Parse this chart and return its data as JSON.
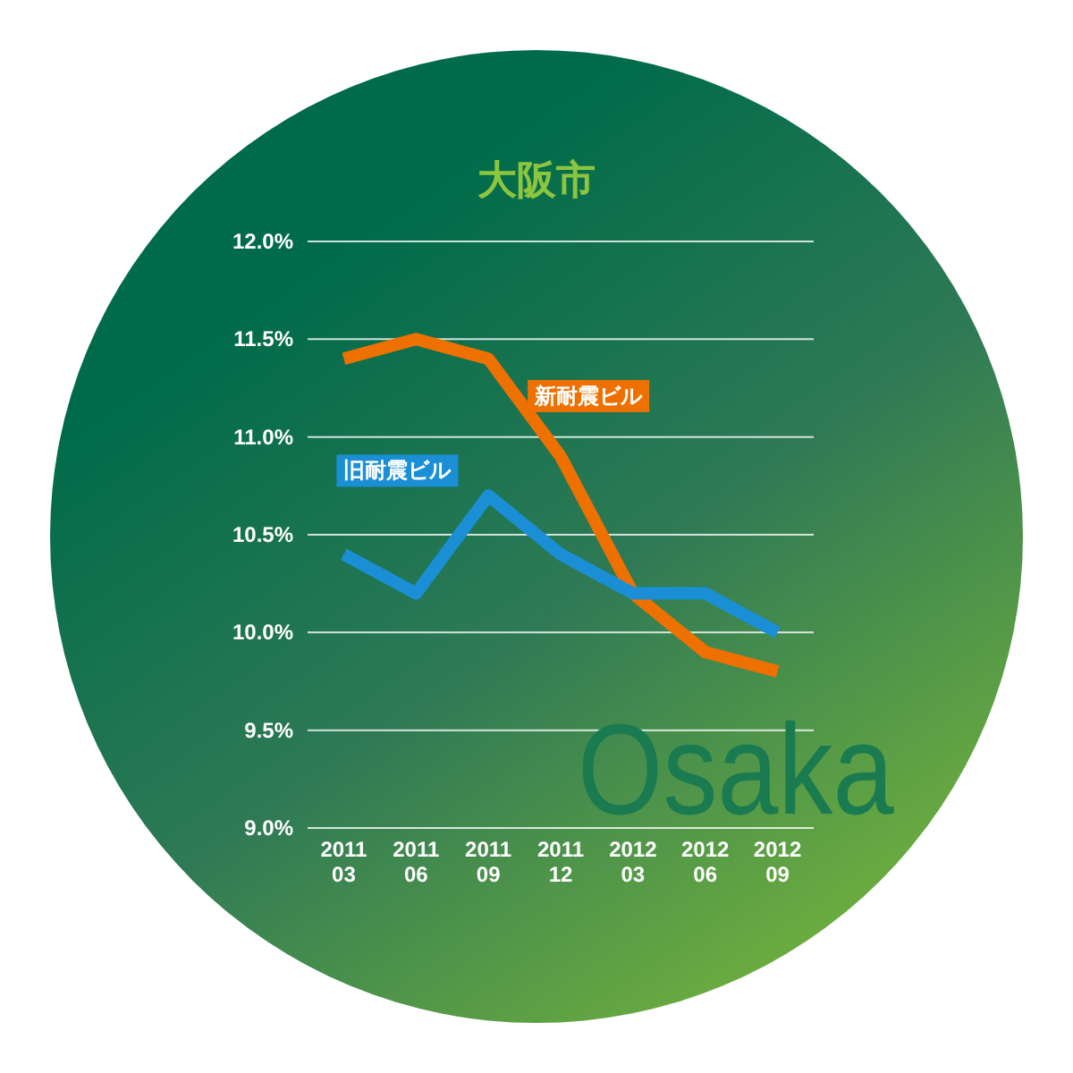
{
  "chart_data": {
    "type": "line",
    "title": "大阪市",
    "categories": [
      "2011\n03",
      "2011\n06",
      "2011\n09",
      "2011\n12",
      "2012\n03",
      "2012\n06",
      "2012\n09"
    ],
    "series": [
      {
        "name": "新耐震ビル",
        "color": "#ee7100",
        "values": [
          11.4,
          11.5,
          11.4,
          10.9,
          10.2,
          9.9,
          9.8
        ]
      },
      {
        "name": "旧耐震ビル",
        "color": "#1a8fd6",
        "values": [
          10.4,
          10.2,
          10.7,
          10.4,
          10.2,
          10.2,
          10.0
        ]
      }
    ],
    "ylim": [
      9,
      12
    ],
    "yticks": [
      {
        "value": 9,
        "label": "9.0%"
      },
      {
        "value": 9.5,
        "label": "9.5%"
      },
      {
        "value": 10,
        "label": "10.0%"
      },
      {
        "value": 10.5,
        "label": "10.5%"
      },
      {
        "value": 11,
        "label": "11.0%"
      },
      {
        "value": 11.5,
        "label": "11.5%"
      },
      {
        "value": 12,
        "label": "12.0%"
      }
    ],
    "grid": "y",
    "legend": false,
    "marker": "none",
    "line_style": "solid",
    "annotations": [
      "Osaka"
    ]
  }
}
